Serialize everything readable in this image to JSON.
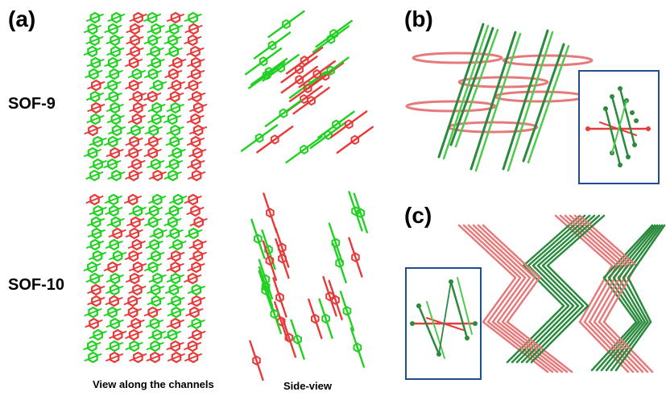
{
  "panels": {
    "a": {
      "label": "(a)"
    },
    "b": {
      "label": "(b)"
    },
    "c": {
      "label": "(c)"
    }
  },
  "rows": {
    "sof9": "SOF-9",
    "sof10": "SOF-10"
  },
  "captions": {
    "channels": "View along the channels",
    "side": "Side-view"
  },
  "colors": {
    "green": "#22d022",
    "red": "#e53b3b",
    "dark_green": "#2b8a3e",
    "light_green": "#4ecb4e",
    "salmon": "#e67a7a",
    "inset_border": "#1f4e8c"
  }
}
